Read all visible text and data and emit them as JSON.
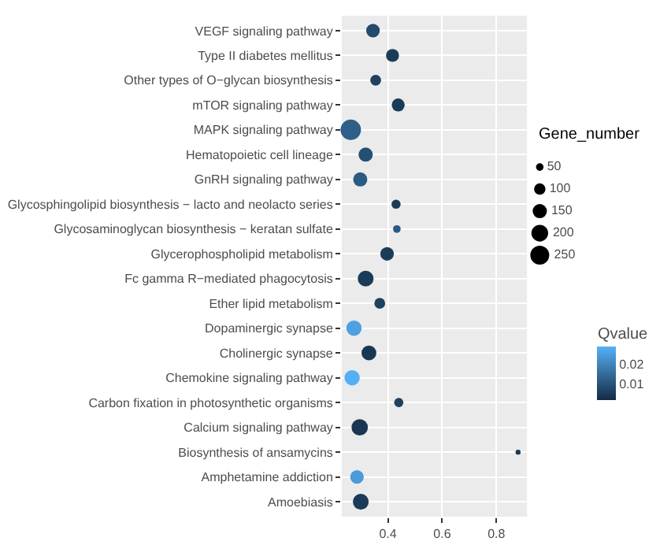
{
  "chart_data": {
    "type": "bubble",
    "categories": [
      "VEGF signaling pathway",
      "Type II diabetes mellitus",
      "Other types of O−glycan biosynthesis",
      "mTOR signaling pathway",
      "MAPK signaling pathway",
      "Hematopoietic cell lineage",
      "GnRH signaling pathway",
      "Glycosphingolipid biosynthesis − lacto and neolacto series",
      "Glycosaminoglycan biosynthesis − keratan sulfate",
      "Glycerophospholipid metabolism",
      "Fc gamma R−mediated phagocytosis",
      "Ether lipid metabolism",
      "Dopaminergic synapse",
      "Cholinergic synapse",
      "Chemokine signaling pathway",
      "Carbon fixation in photosynthetic organisms",
      "Calcium signaling pathway",
      "Biosynthesis of ansamycins",
      "Amphetamine addiction",
      "Amoebiasis"
    ],
    "values": [
      0.345,
      0.417,
      0.355,
      0.438,
      0.263,
      0.318,
      0.298,
      0.43,
      0.433,
      0.397,
      0.318,
      0.37,
      0.275,
      0.33,
      0.268,
      0.44,
      0.296,
      0.88,
      0.286,
      0.3
    ],
    "sizes": [
      110,
      100,
      70,
      100,
      250,
      120,
      120,
      50,
      35,
      110,
      150,
      70,
      140,
      130,
      140,
      50,
      160,
      15,
      110,
      150
    ],
    "size_legend": [
      50,
      100,
      150,
      200,
      250
    ],
    "cvalues": [
      0.008,
      0.005,
      0.006,
      0.005,
      0.012,
      0.009,
      0.011,
      0.005,
      0.011,
      0.005,
      0.005,
      0.006,
      0.025,
      0.004,
      0.028,
      0.006,
      0.004,
      0.005,
      0.024,
      0.005
    ],
    "clim": [
      0.0017,
      0.0283
    ],
    "cticks": [
      0.01,
      0.02
    ],
    "orientation": "horizontal",
    "xlim": [
      0.23,
      0.913
    ],
    "xticks": [
      0.4,
      0.6,
      0.8
    ],
    "legend_title": "Gene_number",
    "clabel": "Qvalue",
    "grid": true
  }
}
